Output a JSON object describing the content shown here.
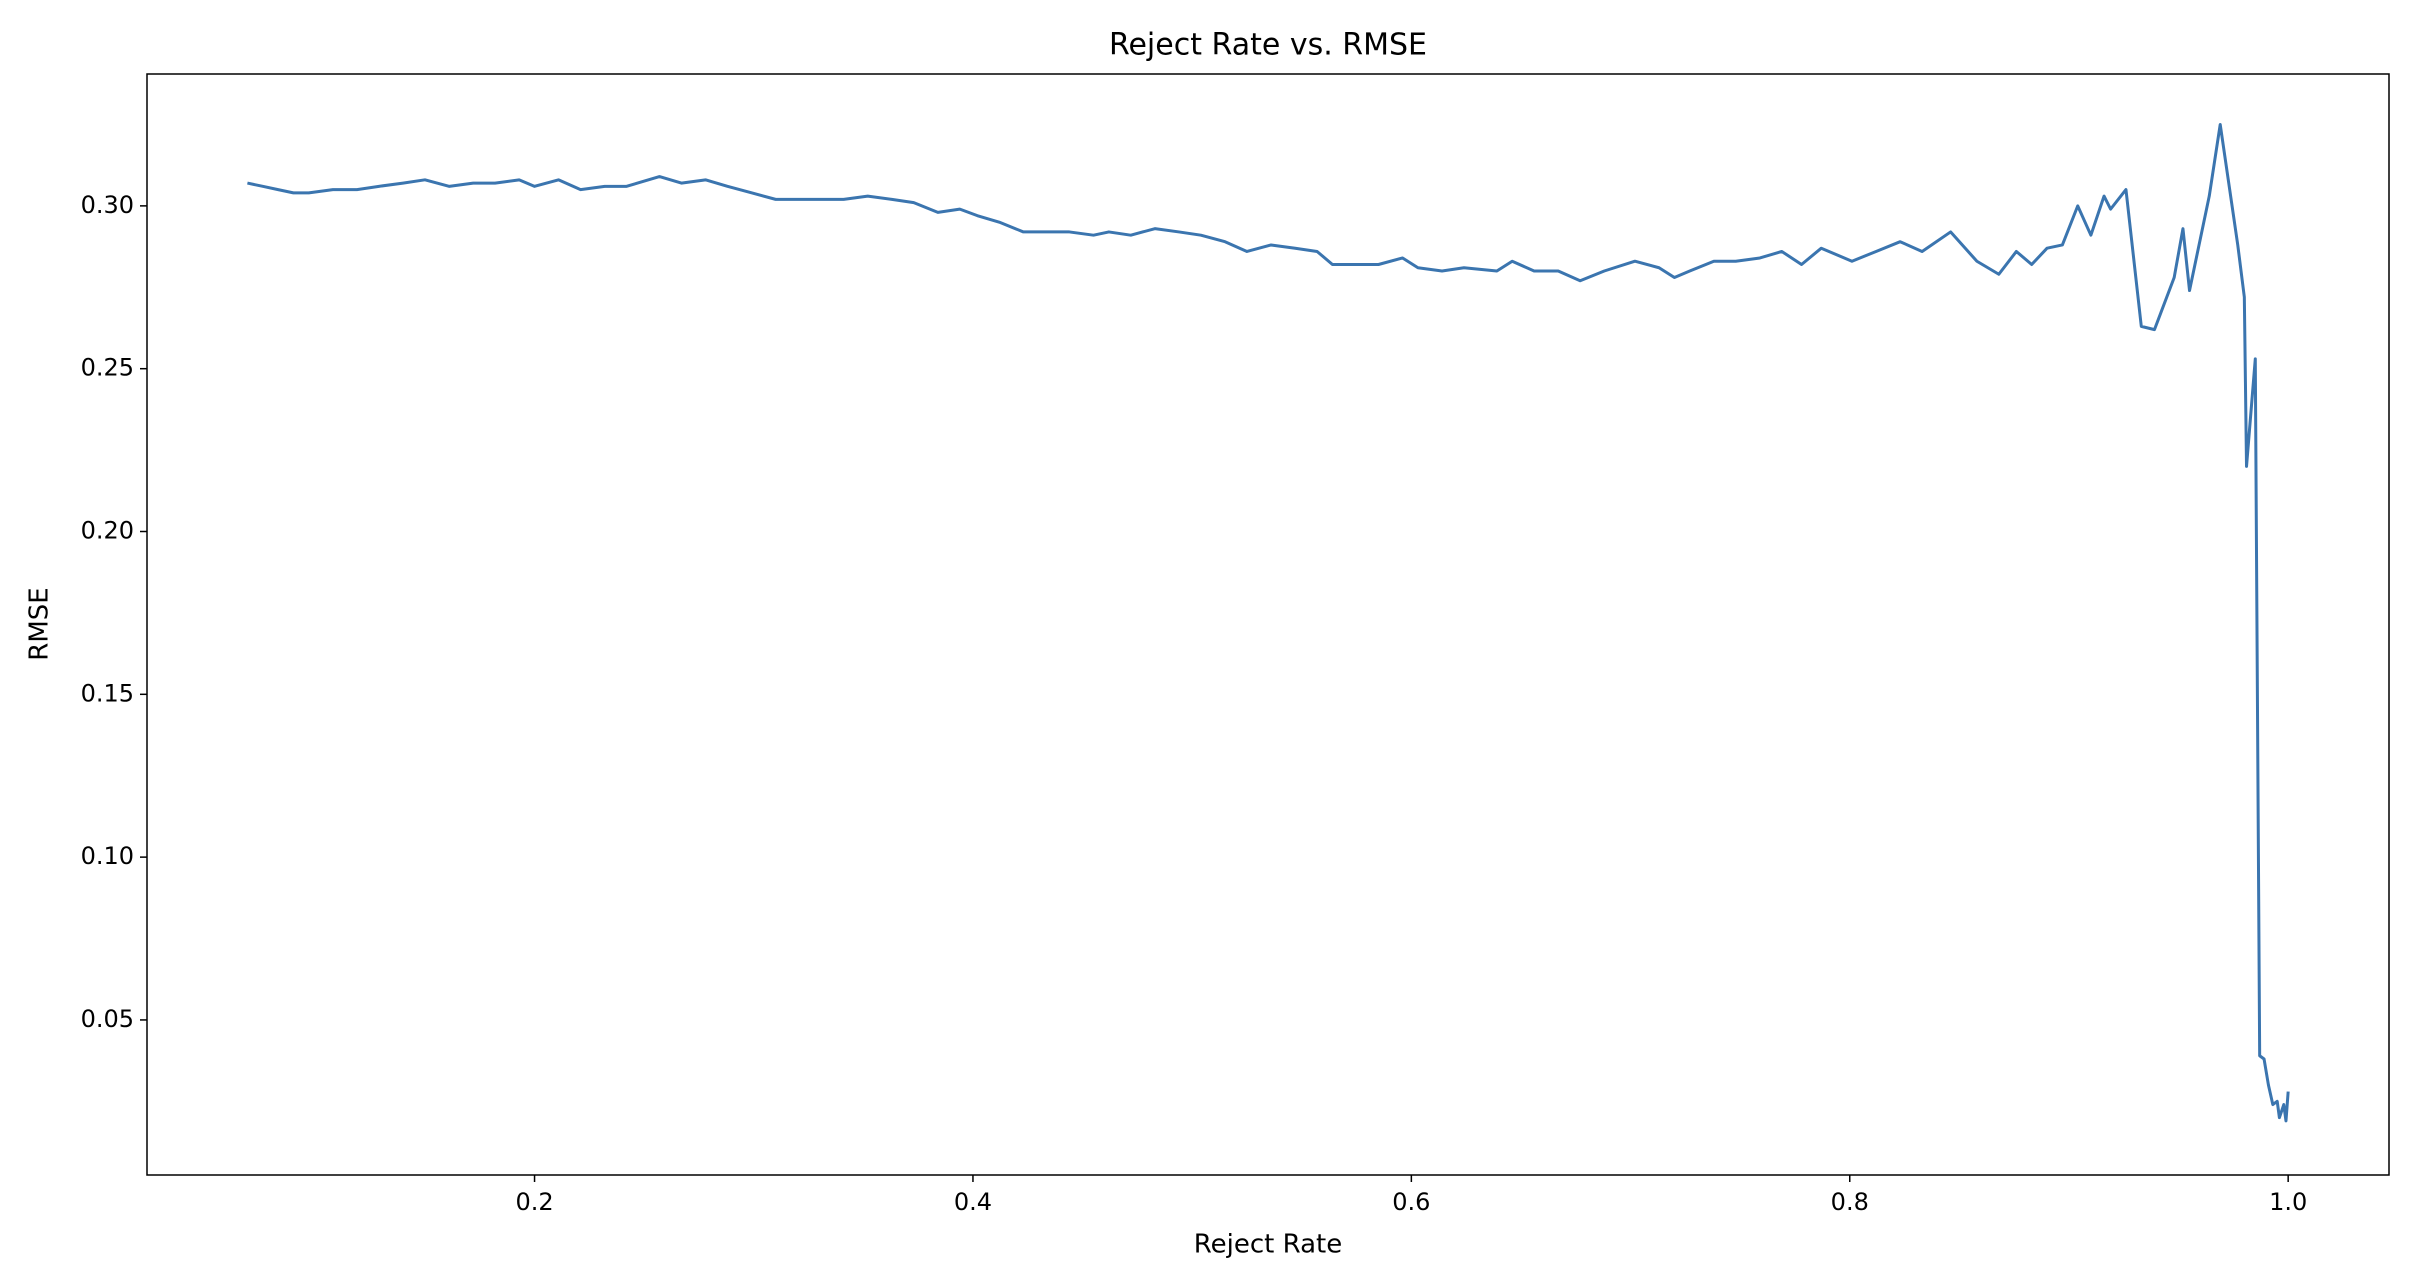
{
  "chart_data": {
    "type": "line",
    "title": "Reject Rate vs. RMSE",
    "x_label": "Reject Rate",
    "y_label": "RMSE",
    "x": [
      0.069,
      0.076,
      0.083,
      0.09,
      0.097,
      0.108,
      0.119,
      0.129,
      0.14,
      0.15,
      0.161,
      0.172,
      0.182,
      0.193,
      0.2,
      0.211,
      0.221,
      0.232,
      0.242,
      0.257,
      0.267,
      0.278,
      0.288,
      0.299,
      0.31,
      0.32,
      0.331,
      0.341,
      0.352,
      0.363,
      0.373,
      0.384,
      0.394,
      0.402,
      0.412,
      0.423,
      0.433,
      0.444,
      0.455,
      0.462,
      0.472,
      0.483,
      0.494,
      0.504,
      0.515,
      0.525,
      0.536,
      0.547,
      0.557,
      0.564,
      0.575,
      0.585,
      0.596,
      0.603,
      0.614,
      0.624,
      0.639,
      0.646,
      0.656,
      0.667,
      0.677,
      0.688,
      0.702,
      0.713,
      0.72,
      0.727,
      0.738,
      0.748,
      0.759,
      0.769,
      0.778,
      0.787,
      0.801,
      0.812,
      0.823,
      0.833,
      0.846,
      0.858,
      0.868,
      0.876,
      0.883,
      0.89,
      0.897,
      0.904,
      0.91,
      0.916,
      0.919,
      0.926,
      0.933,
      0.939,
      0.948,
      0.952,
      0.955,
      0.964,
      0.969,
      0.977,
      0.98,
      0.981,
      0.985,
      0.987,
      0.989,
      0.991,
      0.993,
      0.995,
      0.996,
      0.998,
      0.999,
      1.0
    ],
    "series": [
      {
        "name": "RMSE",
        "color": "#3b75af",
        "values": [
          0.307,
          0.306,
          0.305,
          0.304,
          0.304,
          0.305,
          0.305,
          0.306,
          0.307,
          0.308,
          0.306,
          0.307,
          0.307,
          0.308,
          0.306,
          0.308,
          0.305,
          0.306,
          0.306,
          0.309,
          0.307,
          0.308,
          0.306,
          0.304,
          0.302,
          0.302,
          0.302,
          0.302,
          0.303,
          0.302,
          0.301,
          0.298,
          0.299,
          0.297,
          0.295,
          0.292,
          0.292,
          0.292,
          0.291,
          0.292,
          0.291,
          0.293,
          0.292,
          0.291,
          0.289,
          0.286,
          0.288,
          0.287,
          0.286,
          0.282,
          0.282,
          0.282,
          0.284,
          0.281,
          0.28,
          0.281,
          0.28,
          0.283,
          0.28,
          0.28,
          0.277,
          0.28,
          0.283,
          0.281,
          0.278,
          0.28,
          0.283,
          0.283,
          0.284,
          0.286,
          0.282,
          0.287,
          0.283,
          0.286,
          0.289,
          0.286,
          0.292,
          0.283,
          0.279,
          0.286,
          0.282,
          0.287,
          0.288,
          0.3,
          0.291,
          0.303,
          0.299,
          0.305,
          0.263,
          0.262,
          0.278,
          0.293,
          0.274,
          0.303,
          0.325,
          0.288,
          0.272,
          0.22,
          0.253,
          0.039,
          0.038,
          0.03,
          0.024,
          0.025,
          0.02,
          0.024,
          0.019,
          0.028
        ]
      }
    ],
    "xlim": [
      0.0232,
      1.046
    ],
    "xticks": [
      0.2,
      0.4,
      0.6,
      0.8,
      {
        "value": 1.0,
        "label": "1.0"
      }
    ],
    "ylim": [
      0.00238,
      0.3405
    ],
    "yticks": [
      0.05,
      {
        "value": 0.1,
        "label": "0.10"
      },
      0.15,
      {
        "value": 0.2,
        "label": "0.20"
      },
      0.25,
      {
        "value": 0.3,
        "label": "0.30"
      }
    ],
    "grid": false
  }
}
